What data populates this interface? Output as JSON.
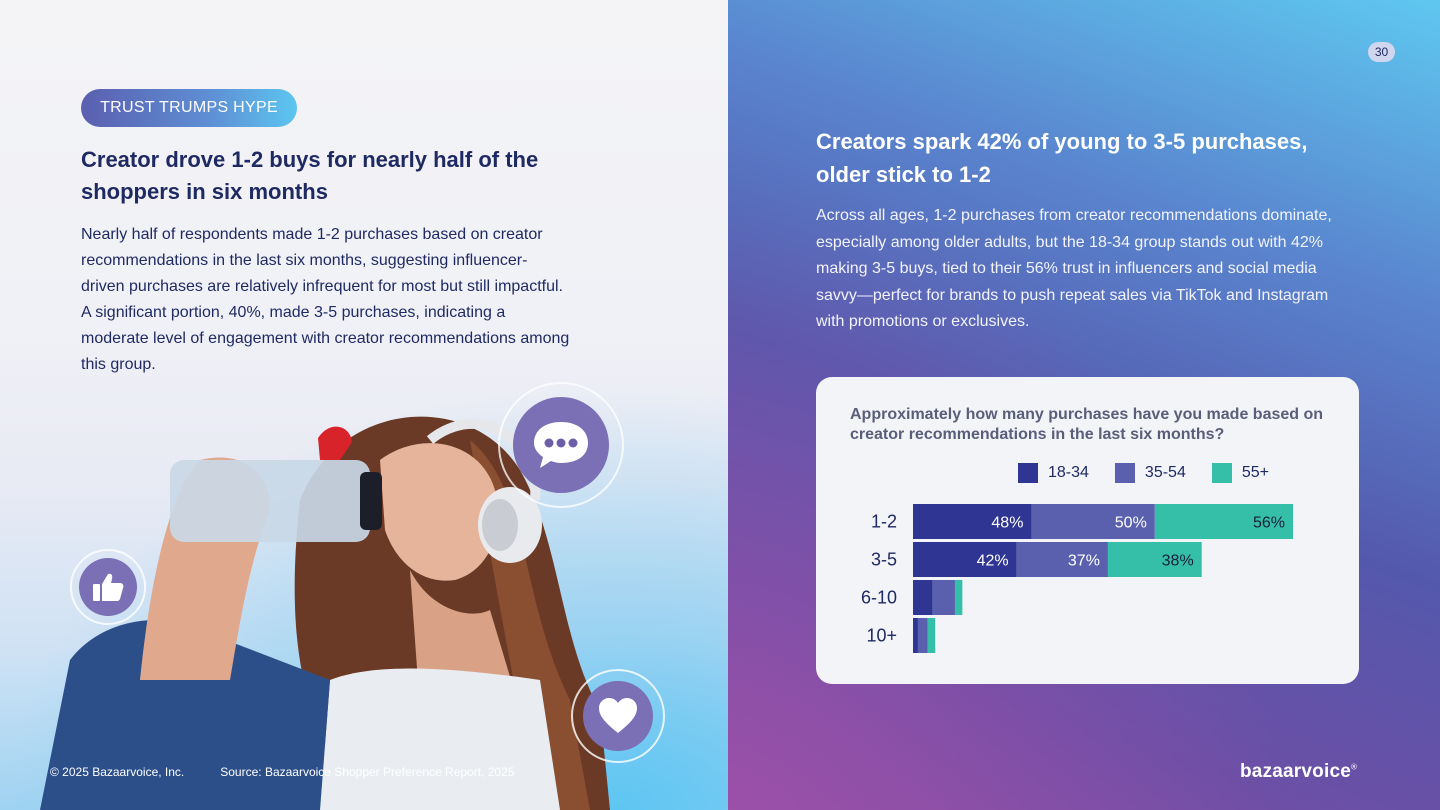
{
  "left": {
    "tag": "TRUST TRUMPS HYPE",
    "title": "Creator drove 1-2 buys for nearly half of the shoppers in six months",
    "body": "Nearly half of respondents made 1-2 purchases based on creator recommendations in the last six months, suggesting influencer-driven purchases are relatively infrequent for most but still impactful. A significant portion, 40%, made 3-5 purchases, indicating a moderate level of engagement with creator recommendations among this group.",
    "footer": {
      "copyright": "© 2025 Bazaarvoice, Inc.",
      "source": "Source: Bazaarvoice Shopper Preference Report, 2025"
    },
    "icons": [
      "chat-bubble-icon",
      "thumbs-up-icon",
      "heart-icon"
    ]
  },
  "right": {
    "page_number": "30",
    "title": "Creators spark 42% of young to 3-5 purchases, older stick to 1-2",
    "body": "Across all ages, 1-2 purchases from creator recommendations dominate, especially among older adults, but the 18-34 group stands out with 42% making 3-5 buys, tied to their 56% trust in influencers and social media savvy—perfect for brands to push repeat sales via TikTok and Instagram with promotions or exclusives.",
    "logo": "bazaarvoice",
    "logo_mark": "®"
  },
  "colors": {
    "series_18_34": "#2e3592",
    "series_35_54": "#5a5fae",
    "series_55_plus": "#35bfa8",
    "navy": "#1f2a63"
  },
  "chart_data": {
    "type": "bar",
    "orientation": "horizontal",
    "stacked": true,
    "title": "Approximately how many purchases have you made based on creator recommendations in the last six months?",
    "categories": [
      "1-2",
      "3-5",
      "6-10",
      "10+"
    ],
    "series": [
      {
        "name": "18-34",
        "values": [
          48,
          42,
          8,
          2
        ],
        "labels": [
          "48%",
          "42%",
          "",
          ""
        ]
      },
      {
        "name": "35-54",
        "values": [
          50,
          37,
          9,
          4
        ],
        "labels": [
          "50%",
          "37%",
          "",
          ""
        ]
      },
      {
        "name": "55+",
        "values": [
          56,
          38,
          3,
          3
        ],
        "labels": [
          "56%",
          "38%",
          "",
          ""
        ]
      }
    ],
    "xlim": [
      0,
      154
    ],
    "legend_position": "top"
  }
}
